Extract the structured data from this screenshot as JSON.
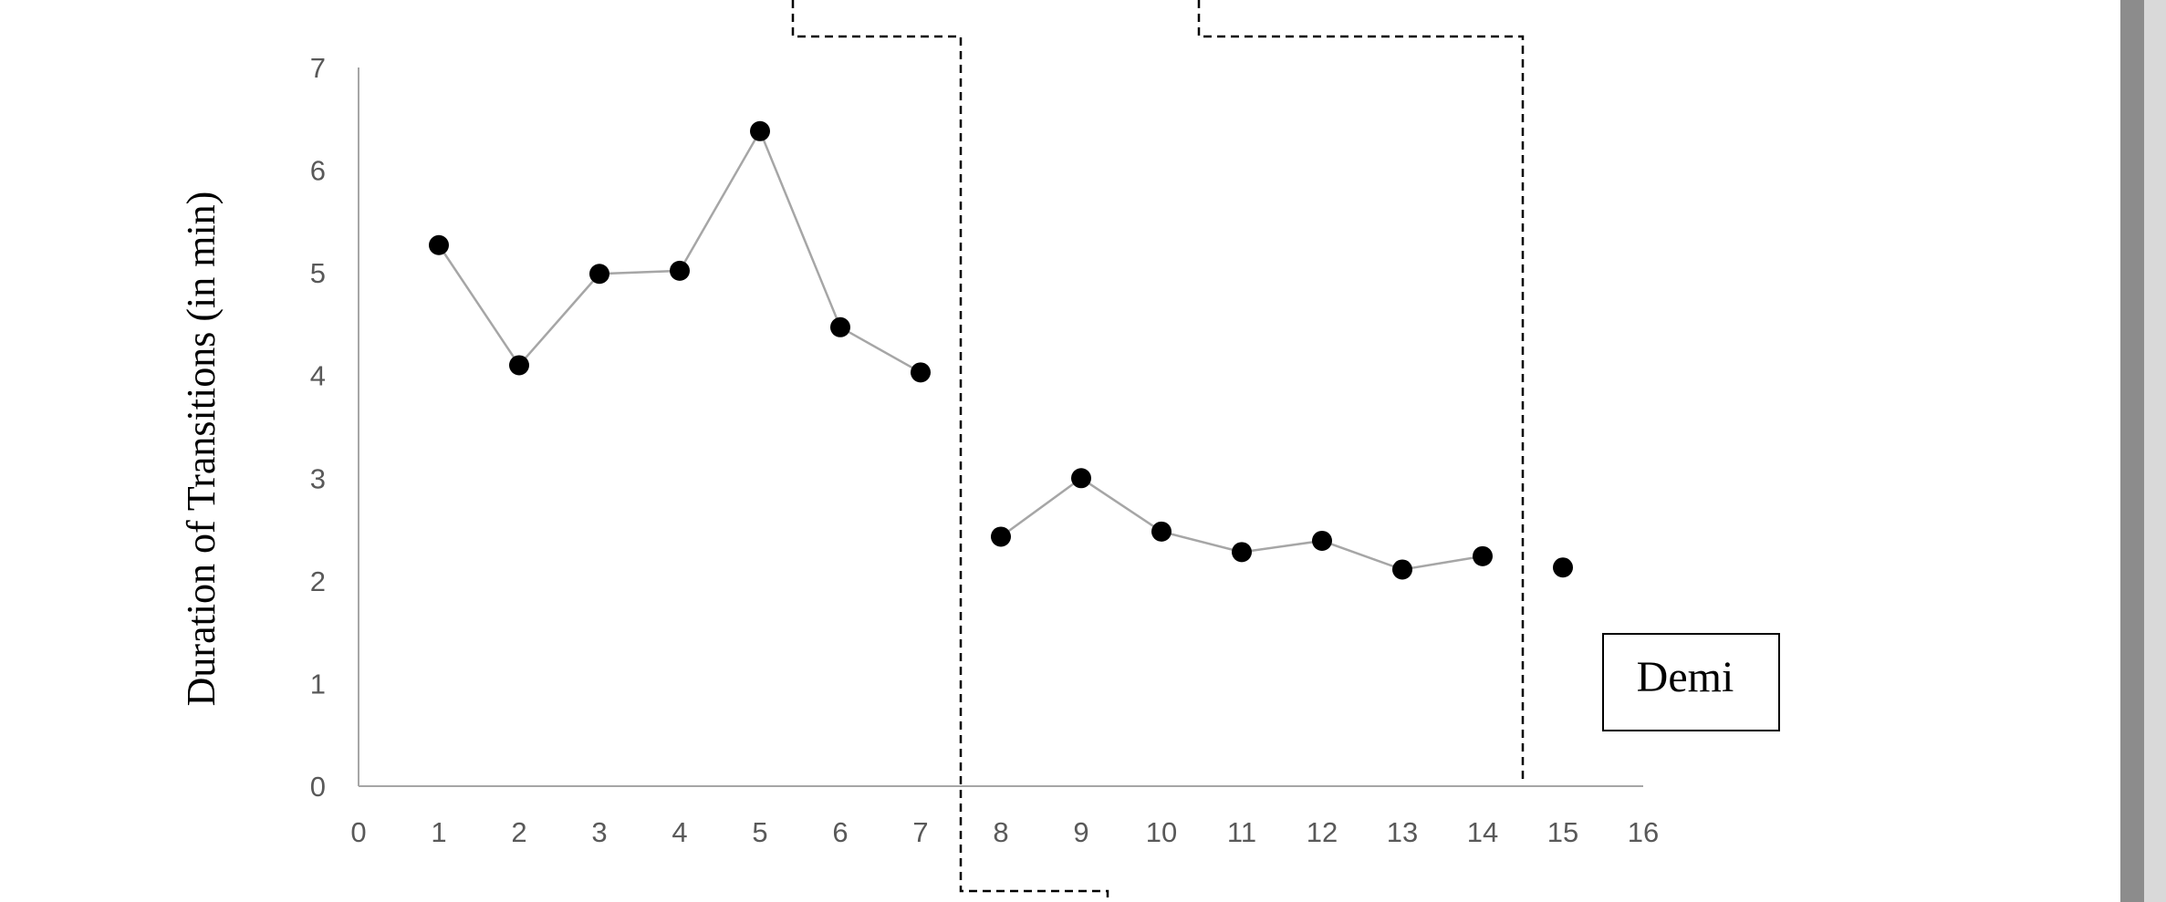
{
  "chart_data": {
    "type": "scatter",
    "ylabel": "Duration of Transitions (in min)",
    "xlabel": "",
    "x_ticks": [
      "0",
      "1",
      "2",
      "3",
      "4",
      "5",
      "6",
      "7",
      "8",
      "9",
      "10",
      "11",
      "12",
      "13",
      "14",
      "15",
      "16"
    ],
    "y_ticks": [
      "0",
      "1",
      "2",
      "3",
      "4",
      "5",
      "6",
      "7"
    ],
    "xlim": [
      0,
      16
    ],
    "ylim": [
      0,
      7
    ],
    "grid": false,
    "phase_change_lines_x": [
      7.5,
      14.5
    ],
    "series": [
      {
        "segments": [
          {
            "x": [
              1,
              2,
              3,
              4,
              5,
              6,
              7
            ],
            "y": [
              5.27,
              4.1,
              4.99,
              5.02,
              6.38,
              4.47,
              4.03
            ]
          },
          {
            "x": [
              8,
              9,
              10,
              11,
              12,
              13,
              14
            ],
            "y": [
              2.43,
              3.0,
              2.48,
              2.28,
              2.39,
              2.11,
              2.24
            ]
          },
          {
            "x": [
              15
            ],
            "y": [
              2.13
            ]
          }
        ]
      }
    ],
    "annotation": "Demi",
    "colors": {
      "marker": "#000000",
      "line": "#a6a6a6",
      "axis": "#a6a6a6",
      "phase_line": "#000000"
    }
  }
}
